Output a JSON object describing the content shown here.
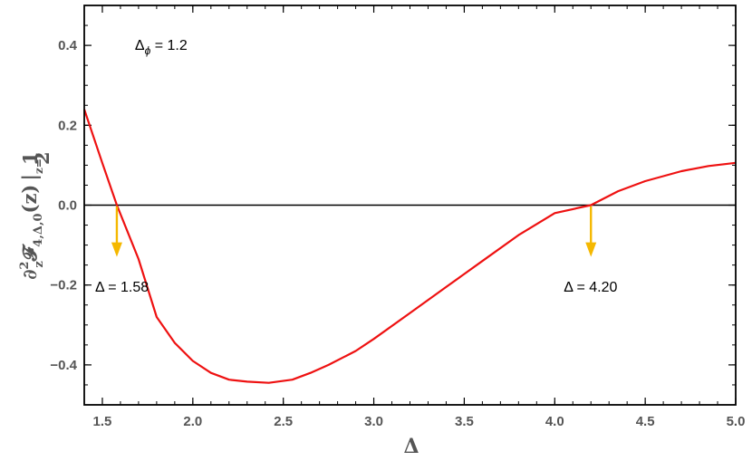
{
  "chart_data": {
    "type": "line",
    "title": "",
    "xlabel": "Δ",
    "ylabel": "∂²𝓏 𝓕 4,Δ,0(z) |z=½",
    "ylabel_parts": {
      "main": "∂",
      "sup": "2",
      "sub": "z",
      "func": "𝓕",
      "idx": "4,Δ,0",
      "arg": "(z)",
      "bar": "|",
      "eval": "z=",
      "num": "1",
      "den": "2"
    },
    "xlim": [
      1.4,
      5.0
    ],
    "ylim": [
      -0.5,
      0.5
    ],
    "xticks": [
      1.5,
      2.0,
      2.5,
      3.0,
      3.5,
      4.0,
      4.5,
      5.0
    ],
    "xtick_labels": [
      "1.5",
      "2.0",
      "2.5",
      "3.0",
      "3.5",
      "4.0",
      "4.5",
      "5.0"
    ],
    "yticks": [
      -0.4,
      -0.2,
      0.0,
      0.2,
      0.4
    ],
    "ytick_labels": [
      "−0.4",
      "−0.2",
      "0.0",
      "0.2",
      "0.4"
    ],
    "grid": false,
    "colors": {
      "series": "#ee1111",
      "arrow": "#f5b800",
      "zero_line": "#000000",
      "frame": "#000000"
    },
    "series": [
      {
        "x": [
          1.4,
          1.5,
          1.58,
          1.7,
          1.8,
          1.9,
          2.0,
          2.1,
          2.2,
          2.3,
          2.42,
          2.55,
          2.65,
          2.75,
          2.9,
          3.0,
          3.2,
          3.4,
          3.6,
          3.8,
          4.0,
          4.2,
          4.35,
          4.5,
          4.7,
          4.85,
          5.0
        ],
        "y": [
          0.24,
          0.105,
          0.0,
          -0.135,
          -0.28,
          -0.345,
          -0.39,
          -0.42,
          -0.437,
          -0.442,
          -0.445,
          -0.437,
          -0.42,
          -0.4,
          -0.365,
          -0.335,
          -0.27,
          -0.205,
          -0.14,
          -0.075,
          -0.02,
          0.0,
          0.035,
          0.06,
          0.085,
          0.098,
          0.106
        ]
      }
    ],
    "annotations": [
      {
        "text": "Δϕ = 1.2",
        "main": "Δ",
        "sub": "ϕ",
        "rest": " = 1.2",
        "x": 1.68,
        "y": 0.4
      },
      {
        "text": "Δ = 1.58",
        "x": 1.58,
        "y": -0.205
      },
      {
        "text": "Δ = 4.20",
        "x": 4.2,
        "y": -0.205
      }
    ],
    "arrows": [
      {
        "x": 1.58,
        "y_from": -0.003,
        "y_to": -0.125
      },
      {
        "x": 4.2,
        "y_from": -0.003,
        "y_to": -0.125
      }
    ]
  }
}
